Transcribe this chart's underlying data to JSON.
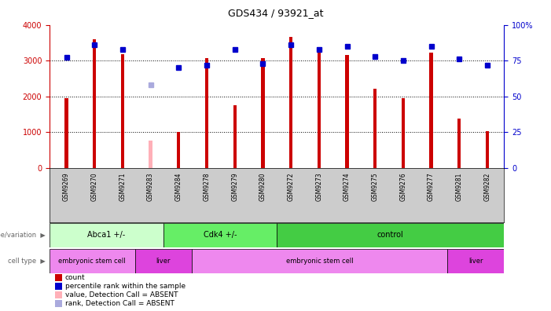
{
  "title": "GDS434 / 93921_at",
  "samples": [
    "GSM9269",
    "GSM9270",
    "GSM9271",
    "GSM9283",
    "GSM9284",
    "GSM9278",
    "GSM9279",
    "GSM9280",
    "GSM9272",
    "GSM9273",
    "GSM9274",
    "GSM9275",
    "GSM9276",
    "GSM9277",
    "GSM9281",
    "GSM9282"
  ],
  "counts": [
    1950,
    3590,
    3170,
    null,
    1010,
    3080,
    1750,
    3080,
    3670,
    3300,
    3150,
    2220,
    1960,
    3220,
    1380,
    1020
  ],
  "absent_counts": [
    null,
    null,
    null,
    760,
    null,
    null,
    null,
    null,
    null,
    null,
    null,
    null,
    null,
    null,
    null,
    null
  ],
  "percentile_ranks": [
    77.5,
    86,
    83,
    null,
    70,
    72,
    83,
    73,
    86,
    83,
    85,
    78,
    75,
    85,
    76,
    72
  ],
  "absent_ranks": [
    null,
    null,
    null,
    58,
    null,
    null,
    null,
    null,
    null,
    null,
    null,
    null,
    null,
    null,
    null,
    null
  ],
  "ylim_left": [
    0,
    4000
  ],
  "ylim_right": [
    0,
    100
  ],
  "yticks_left": [
    0,
    1000,
    2000,
    3000,
    4000
  ],
  "yticks_right": [
    0,
    25,
    50,
    75,
    100
  ],
  "bar_color": "#cc0000",
  "absent_bar_color": "#ffb0b8",
  "dot_color": "#0000cc",
  "absent_dot_color": "#aaaadd",
  "bg_color": "#ffffff",
  "xlabel_bg": "#cccccc",
  "genotype_groups": [
    {
      "label": "Abca1 +/-",
      "start": 0,
      "end": 4,
      "color": "#ccffcc"
    },
    {
      "label": "Cdk4 +/-",
      "start": 4,
      "end": 8,
      "color": "#66ee66"
    },
    {
      "label": "control",
      "start": 8,
      "end": 16,
      "color": "#44cc44"
    }
  ],
  "celltype_groups": [
    {
      "label": "embryonic stem cell",
      "start": 0,
      "end": 3,
      "color": "#ee88ee"
    },
    {
      "label": "liver",
      "start": 3,
      "end": 5,
      "color": "#dd44dd"
    },
    {
      "label": "embryonic stem cell",
      "start": 5,
      "end": 14,
      "color": "#ee88ee"
    },
    {
      "label": "liver",
      "start": 14,
      "end": 16,
      "color": "#dd44dd"
    }
  ],
  "legend_items": [
    {
      "label": "count",
      "color": "#cc0000"
    },
    {
      "label": "percentile rank within the sample",
      "color": "#0000cc"
    },
    {
      "label": "value, Detection Call = ABSENT",
      "color": "#ffb0b8"
    },
    {
      "label": "rank, Detection Call = ABSENT",
      "color": "#aaaadd"
    }
  ],
  "bar_width": 0.12,
  "dot_size": 4
}
